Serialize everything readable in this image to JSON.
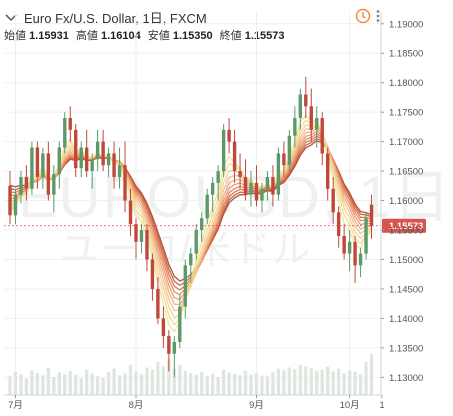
{
  "header": {
    "title": "Euro Fx/U.S. Dollar, 1日, FXCM",
    "ohlc": [
      {
        "label": "始値",
        "value": "1.15931"
      },
      {
        "label": "高値",
        "value": "1.16104"
      },
      {
        "label": "安値",
        "value": "1.15350"
      },
      {
        "label": "終値",
        "value": "1.15573"
      }
    ],
    "collapse_icon": "chevron-down-icon",
    "alert_icon": "alert-clock-icon",
    "menu_icon": "vertical-dots-icon"
  },
  "watermark": {
    "line1": "EUROUSD, 1日",
    "line2": "ユーロ/米ドル"
  },
  "price_axis": {
    "ticks": [
      "1.19000",
      "1.18500",
      "1.18000",
      "1.17500",
      "1.17000",
      "1.16500",
      "1.16000",
      "1.15500",
      "1.15000",
      "1.14500",
      "1.14000",
      "1.13500",
      "1.13000"
    ],
    "last_price_label": "1.15573"
  },
  "time_axis": {
    "ticks": [
      "7月",
      "8月",
      "9月",
      "10月",
      "1"
    ]
  },
  "colors": {
    "up": "#5b9a68",
    "down": "#c0483a",
    "last_price": "#d9534f",
    "volume": "#dfe6df",
    "grid": "#eef0f2",
    "axis": "#d0d4d8"
  },
  "chart_data": {
    "type": "candlestick",
    "instrument": "EURUSD",
    "ylim": [
      1.127,
      1.192
    ],
    "candles": [
      [
        1.1625,
        1.165,
        1.156,
        1.1575
      ],
      [
        1.1575,
        1.162,
        1.156,
        1.161
      ],
      [
        1.161,
        1.165,
        1.1595,
        1.164
      ],
      [
        1.164,
        1.166,
        1.16,
        1.162
      ],
      [
        1.162,
        1.17,
        1.161,
        1.169
      ],
      [
        1.169,
        1.17,
        1.162,
        1.164
      ],
      [
        1.164,
        1.169,
        1.162,
        1.168
      ],
      [
        1.168,
        1.17,
        1.16,
        1.161
      ],
      [
        1.161,
        1.166,
        1.158,
        1.1645
      ],
      [
        1.1645,
        1.17,
        1.162,
        1.169
      ],
      [
        1.169,
        1.175,
        1.168,
        1.174
      ],
      [
        1.174,
        1.176,
        1.17,
        1.172
      ],
      [
        1.172,
        1.173,
        1.164,
        1.1655
      ],
      [
        1.1655,
        1.17,
        1.164,
        1.169
      ],
      [
        1.169,
        1.172,
        1.164,
        1.165
      ],
      [
        1.165,
        1.168,
        1.162,
        1.167
      ],
      [
        1.167,
        1.172,
        1.165,
        1.17
      ],
      [
        1.17,
        1.172,
        1.165,
        1.166
      ],
      [
        1.166,
        1.169,
        1.164,
        1.168
      ],
      [
        1.168,
        1.17,
        1.162,
        1.164
      ],
      [
        1.164,
        1.169,
        1.162,
        1.166
      ],
      [
        1.166,
        1.17,
        1.158,
        1.16
      ],
      [
        1.16,
        1.162,
        1.154,
        1.156
      ],
      [
        1.156,
        1.157,
        1.15,
        1.153
      ],
      [
        1.153,
        1.156,
        1.151,
        1.155
      ],
      [
        1.155,
        1.156,
        1.148,
        1.15
      ],
      [
        1.15,
        1.151,
        1.143,
        1.145
      ],
      [
        1.145,
        1.147,
        1.139,
        1.14
      ],
      [
        1.14,
        1.142,
        1.135,
        1.137
      ],
      [
        1.137,
        1.138,
        1.131,
        1.134
      ],
      [
        1.134,
        1.137,
        1.13,
        1.136
      ],
      [
        1.136,
        1.144,
        1.135,
        1.142
      ],
      [
        1.142,
        1.15,
        1.14,
        1.149
      ],
      [
        1.149,
        1.152,
        1.146,
        1.151
      ],
      [
        1.151,
        1.156,
        1.15,
        1.155
      ],
      [
        1.155,
        1.158,
        1.153,
        1.157
      ],
      [
        1.157,
        1.162,
        1.156,
        1.161
      ],
      [
        1.161,
        1.164,
        1.158,
        1.163
      ],
      [
        1.163,
        1.166,
        1.16,
        1.165
      ],
      [
        1.165,
        1.173,
        1.164,
        1.172
      ],
      [
        1.172,
        1.174,
        1.168,
        1.17
      ],
      [
        1.17,
        1.172,
        1.163,
        1.165
      ],
      [
        1.165,
        1.168,
        1.162,
        1.164
      ],
      [
        1.164,
        1.167,
        1.16,
        1.161
      ],
      [
        1.161,
        1.165,
        1.159,
        1.163
      ],
      [
        1.163,
        1.166,
        1.159,
        1.16
      ],
      [
        1.16,
        1.163,
        1.158,
        1.162
      ],
      [
        1.162,
        1.165,
        1.16,
        1.164
      ],
      [
        1.164,
        1.166,
        1.159,
        1.161
      ],
      [
        1.161,
        1.169,
        1.16,
        1.168
      ],
      [
        1.168,
        1.17,
        1.164,
        1.166
      ],
      [
        1.166,
        1.172,
        1.165,
        1.171
      ],
      [
        1.171,
        1.176,
        1.169,
        1.174
      ],
      [
        1.174,
        1.179,
        1.172,
        1.178
      ],
      [
        1.178,
        1.181,
        1.174,
        1.176
      ],
      [
        1.176,
        1.179,
        1.17,
        1.172
      ],
      [
        1.172,
        1.176,
        1.169,
        1.174
      ],
      [
        1.174,
        1.175,
        1.166,
        1.168
      ],
      [
        1.168,
        1.169,
        1.16,
        1.162
      ],
      [
        1.162,
        1.164,
        1.156,
        1.158
      ],
      [
        1.158,
        1.159,
        1.152,
        1.154
      ],
      [
        1.154,
        1.156,
        1.15,
        1.151
      ],
      [
        1.151,
        1.155,
        1.148,
        1.153
      ],
      [
        1.153,
        1.154,
        1.146,
        1.149
      ],
      [
        1.149,
        1.152,
        1.147,
        1.151
      ],
      [
        1.151,
        1.158,
        1.15,
        1.157
      ],
      [
        1.1593,
        1.161,
        1.1535,
        1.1557
      ]
    ],
    "volume": [
      0.35,
      0.42,
      0.38,
      0.3,
      0.45,
      0.4,
      0.36,
      0.5,
      0.33,
      0.41,
      0.38,
      0.44,
      0.37,
      0.3,
      0.46,
      0.39,
      0.35,
      0.31,
      0.42,
      0.48,
      0.36,
      0.4,
      0.55,
      0.43,
      0.38,
      0.5,
      0.47,
      0.6,
      0.52,
      0.65,
      0.48,
      0.55,
      0.44,
      0.4,
      0.37,
      0.42,
      0.35,
      0.38,
      0.33,
      0.46,
      0.41,
      0.39,
      0.36,
      0.44,
      0.37,
      0.4,
      0.35,
      0.34,
      0.42,
      0.48,
      0.45,
      0.5,
      0.47,
      0.55,
      0.52,
      0.49,
      0.44,
      0.46,
      0.51,
      0.43,
      0.48,
      0.4,
      0.45,
      0.42,
      0.38,
      0.6,
      0.75
    ],
    "ribbon_colors": [
      "#a8432b",
      "#c4573a",
      "#d66b45",
      "#e27f55",
      "#e99366",
      "#eea878",
      "#f1bd89",
      "#f3cf8f",
      "#f0dc8a",
      "#ece394"
    ],
    "ribbon_lags": [
      4.0,
      3.7,
      3.4,
      3.1,
      2.8,
      2.5,
      2.2,
      1.9,
      1.6,
      1.3
    ],
    "last_price": 1.15573
  }
}
